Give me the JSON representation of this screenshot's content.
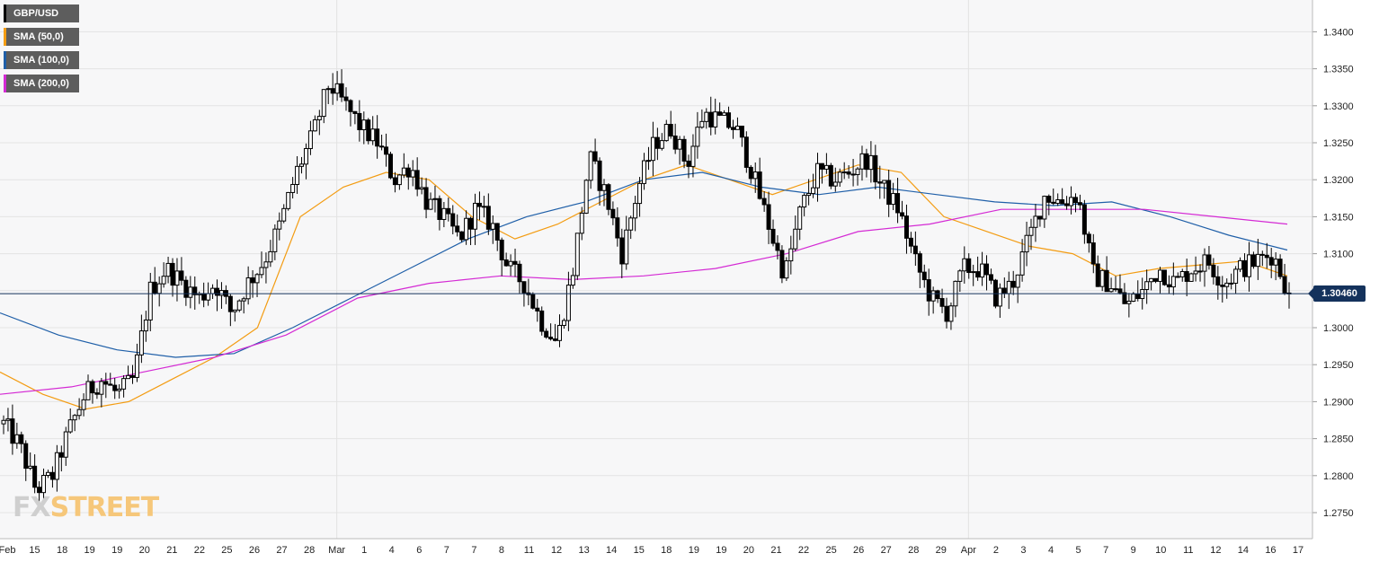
{
  "legend": [
    {
      "label": "GBP/USD",
      "color": "#000000"
    },
    {
      "label": "SMA (50,0)",
      "color": "#f39c12"
    },
    {
      "label": "SMA (100,0)",
      "color": "#1f5fa8"
    },
    {
      "label": "SMA (200,0)",
      "color": "#d42ad4"
    }
  ],
  "logo": {
    "part1": "FX",
    "part2": "STREET"
  },
  "last_price": "1.30460",
  "chart_data": {
    "type": "candlestick",
    "symbol": "GBP/USD",
    "ylim": [
      1.27,
      1.345
    ],
    "y_ticks": [
      "1.2750",
      "1.2800",
      "1.2850",
      "1.2900",
      "1.2950",
      "1.3000",
      "1.3050",
      "1.3100",
      "1.3150",
      "1.3200",
      "1.3250",
      "1.3300",
      "1.3350",
      "1.3400"
    ],
    "x_ticks": [
      "Feb",
      "15",
      "18",
      "19",
      "19",
      "20",
      "21",
      "22",
      "25",
      "26",
      "27",
      "28",
      "Mar",
      "1",
      "4",
      "6",
      "7",
      "7",
      "8",
      "11",
      "12",
      "13",
      "14",
      "15",
      "18",
      "19",
      "19",
      "20",
      "21",
      "22",
      "25",
      "26",
      "27",
      "28",
      "29",
      "Apr",
      "2",
      "3",
      "4",
      "5",
      "7",
      "9",
      "10",
      "11",
      "12",
      "14",
      "16",
      "17"
    ],
    "grid": true,
    "last_price": 1.3046,
    "series": [
      {
        "name": "GBP/USD",
        "type": "candlestick",
        "anchors": [
          1.287,
          1.284,
          1.278,
          1.28,
          1.286,
          1.291,
          1.293,
          1.291,
          1.293,
          1.305,
          1.308,
          1.306,
          1.304,
          1.306,
          1.302,
          1.306,
          1.309,
          1.314,
          1.321,
          1.326,
          1.333,
          1.33,
          1.327,
          1.325,
          1.32,
          1.322,
          1.317,
          1.315,
          1.312,
          1.316,
          1.314,
          1.308,
          1.306,
          1.301,
          1.298,
          1.308,
          1.323,
          1.318,
          1.31,
          1.319,
          1.325,
          1.327,
          1.322,
          1.329,
          1.328,
          1.327,
          1.321,
          1.314,
          1.307,
          1.316,
          1.321,
          1.32,
          1.321,
          1.323,
          1.319,
          1.316,
          1.309,
          1.304,
          1.302,
          1.308,
          1.308,
          1.304,
          1.306,
          1.312,
          1.318,
          1.317,
          1.318,
          1.307,
          1.306,
          1.303,
          1.305,
          1.308,
          1.306,
          1.308,
          1.309,
          1.306,
          1.308,
          1.309,
          1.31,
          1.3046
        ]
      },
      {
        "name": "SMA (50,0)",
        "color": "#f39c12",
        "values": [
          1.294,
          1.291,
          1.289,
          1.29,
          1.293,
          1.296,
          1.3,
          1.315,
          1.319,
          1.321,
          1.32,
          1.315,
          1.312,
          1.314,
          1.317,
          1.32,
          1.322,
          1.32,
          1.318,
          1.32,
          1.322,
          1.321,
          1.315,
          1.313,
          1.311,
          1.31,
          1.307,
          1.308,
          1.3085,
          1.309,
          1.307
        ]
      },
      {
        "name": "SMA (100,0)",
        "color": "#1f5fa8",
        "values": [
          1.302,
          1.299,
          1.297,
          1.296,
          1.2965,
          1.3,
          1.304,
          1.308,
          1.312,
          1.315,
          1.317,
          1.32,
          1.321,
          1.319,
          1.318,
          1.319,
          1.318,
          1.317,
          1.3165,
          1.317,
          1.315,
          1.3125,
          1.3105
        ]
      },
      {
        "name": "SMA (200,0)",
        "color": "#d42ad4",
        "values": [
          1.291,
          1.292,
          1.294,
          1.296,
          1.299,
          1.304,
          1.306,
          1.307,
          1.3065,
          1.307,
          1.308,
          1.31,
          1.313,
          1.314,
          1.316,
          1.316,
          1.316,
          1.315,
          1.314
        ]
      }
    ]
  }
}
